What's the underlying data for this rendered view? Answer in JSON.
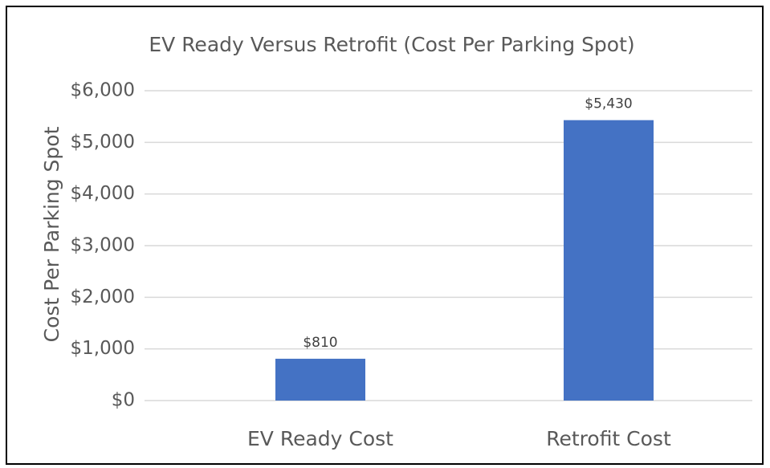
{
  "chart_data": {
    "type": "bar",
    "title": "EV Ready Versus Retrofit (Cost Per Parking Spot)",
    "y_axis_label": "Cost Per Parking Spot",
    "categories": [
      "EV Ready Cost",
      "Retrofit Cost"
    ],
    "values": [
      810,
      5430
    ],
    "value_labels": [
      "$810",
      "$5,430"
    ],
    "color": "#4472c4",
    "ylim": [
      0,
      6000
    ],
    "yticks": [
      {
        "value": 0,
        "label": "$0"
      },
      {
        "value": 1000,
        "label": "$1,000"
      },
      {
        "value": 2000,
        "label": "$2,000"
      },
      {
        "value": 3000,
        "label": "$3,000"
      },
      {
        "value": 4000,
        "label": "$4,000"
      },
      {
        "value": 5000,
        "label": "$5,000"
      },
      {
        "value": 6000,
        "label": "$6,000"
      }
    ],
    "grid": true
  }
}
